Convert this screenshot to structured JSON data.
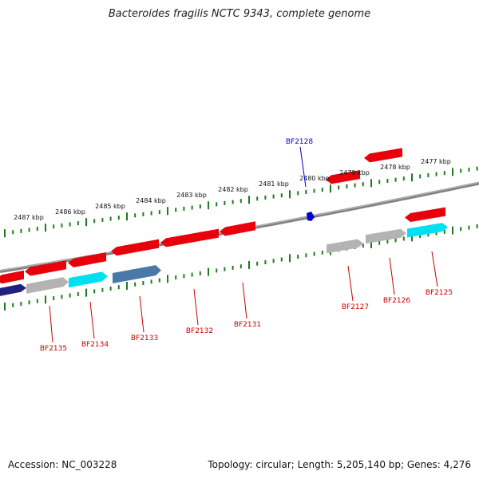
{
  "title": "Bacteroides fragilis NCTC 9343, complete genome",
  "footer": {
    "accession": "Accession: NC_003228",
    "summary": "Topology: circular; Length: 5,205,140 bp; Genes: 4,276"
  },
  "colors": {
    "backbone": "#808080",
    "tick": "#1e7a1e",
    "gene_red": "#e8000b",
    "gene_gray": "#b3b3b3",
    "gene_cyan": "#00e0f0",
    "gene_steel": "#4a78a8",
    "gene_navy": "#202080",
    "label_red": "#cc0000",
    "label_blue": "#0000cc"
  },
  "scale": {
    "unit": "kbp",
    "labels": [
      "2487 kbp",
      "2486 kbp",
      "2485 kbp",
      "2484 kbp",
      "2483 kbp",
      "2482 kbp",
      "2481 kbp",
      "2480 kbp",
      "2479 kbp",
      "2478 kbp",
      "2477 kbp"
    ]
  },
  "gene_labels": [
    {
      "text": "BF2128",
      "color": "blue"
    },
    {
      "text": "BF2135",
      "color": "red"
    },
    {
      "text": "BF2134",
      "color": "red"
    },
    {
      "text": "BF2133",
      "color": "red"
    },
    {
      "text": "BF2132",
      "color": "red"
    },
    {
      "text": "BF2131",
      "color": "red"
    },
    {
      "text": "BF2127",
      "color": "red"
    },
    {
      "text": "BF2126",
      "color": "red"
    },
    {
      "text": "BF2125",
      "color": "red"
    }
  ]
}
